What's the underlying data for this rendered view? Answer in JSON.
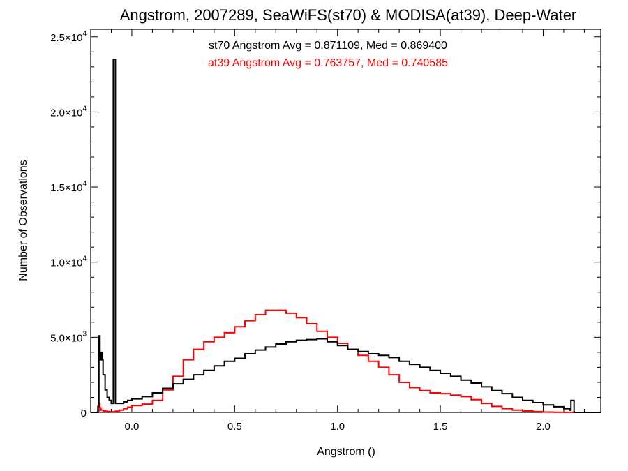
{
  "chart_data": {
    "type": "step-histogram",
    "title": "Angstrom, 2007289, SeaWiFS(st70) & MODISA(at39), Deep-Water",
    "xlabel": "Angstrom ()",
    "ylabel": "Number of Observations",
    "xlim": [
      -0.2,
      2.28
    ],
    "ylim": [
      0,
      25500
    ],
    "x_ticks": [
      {
        "v": 0.0,
        "label": "0.0"
      },
      {
        "v": 0.5,
        "label": "0.5"
      },
      {
        "v": 1.0,
        "label": "1.0"
      },
      {
        "v": 1.5,
        "label": "1.5"
      },
      {
        "v": 2.0,
        "label": "2.0"
      }
    ],
    "y_ticks": [
      {
        "v": 0,
        "mant": "0",
        "exp": ""
      },
      {
        "v": 5000,
        "mant": "5.0×10",
        "exp": "3"
      },
      {
        "v": 10000,
        "mant": "1.0×10",
        "exp": "4"
      },
      {
        "v": 15000,
        "mant": "1.5×10",
        "exp": "4"
      },
      {
        "v": 20000,
        "mant": "2.0×10",
        "exp": "4"
      },
      {
        "v": 25000,
        "mant": "2.5×10",
        "exp": "4"
      }
    ],
    "annotations": [
      {
        "text": "st70 Angstrom Avg = 0.871109, Med = 0.869400",
        "color": "#000000"
      },
      {
        "text": "at39 Angstrom Avg = 0.763757, Med = 0.740585",
        "color": "#ff0000"
      }
    ],
    "series": [
      {
        "color": "#000000",
        "points": [
          [
            -0.2,
            0
          ],
          [
            -0.19,
            0
          ],
          [
            -0.18,
            0
          ],
          [
            -0.17,
            0
          ],
          [
            -0.165,
            400
          ],
          [
            -0.16,
            5100
          ],
          [
            -0.155,
            3500
          ],
          [
            -0.15,
            4000
          ],
          [
            -0.145,
            3500
          ],
          [
            -0.14,
            2500
          ],
          [
            -0.13,
            1500
          ],
          [
            -0.12,
            1000
          ],
          [
            -0.11,
            800
          ],
          [
            -0.1,
            600
          ],
          [
            -0.09,
            23500
          ],
          [
            -0.08,
            600
          ],
          [
            -0.06,
            600
          ],
          [
            -0.04,
            700
          ],
          [
            -0.02,
            800
          ],
          [
            0.0,
            900
          ],
          [
            0.05,
            1050
          ],
          [
            0.1,
            1300
          ],
          [
            0.15,
            1600
          ],
          [
            0.2,
            1900
          ],
          [
            0.25,
            2200
          ],
          [
            0.3,
            2500
          ],
          [
            0.35,
            2800
          ],
          [
            0.4,
            3100
          ],
          [
            0.45,
            3400
          ],
          [
            0.5,
            3600
          ],
          [
            0.55,
            3900
          ],
          [
            0.6,
            4150
          ],
          [
            0.65,
            4350
          ],
          [
            0.7,
            4550
          ],
          [
            0.75,
            4700
          ],
          [
            0.8,
            4800
          ],
          [
            0.85,
            4850
          ],
          [
            0.9,
            4900
          ],
          [
            0.95,
            4700
          ],
          [
            1.0,
            4450
          ],
          [
            1.05,
            4200
          ],
          [
            1.1,
            4050
          ],
          [
            1.15,
            3900
          ],
          [
            1.2,
            3800
          ],
          [
            1.25,
            3650
          ],
          [
            1.3,
            3400
          ],
          [
            1.35,
            3200
          ],
          [
            1.4,
            3000
          ],
          [
            1.45,
            2800
          ],
          [
            1.5,
            2600
          ],
          [
            1.55,
            2400
          ],
          [
            1.6,
            2150
          ],
          [
            1.65,
            1950
          ],
          [
            1.7,
            1700
          ],
          [
            1.75,
            1450
          ],
          [
            1.8,
            1250
          ],
          [
            1.85,
            1000
          ],
          [
            1.9,
            800
          ],
          [
            1.95,
            650
          ],
          [
            2.0,
            500
          ],
          [
            2.05,
            380
          ],
          [
            2.1,
            250
          ],
          [
            2.13,
            150
          ],
          [
            2.135,
            800
          ],
          [
            2.145,
            800
          ],
          [
            2.15,
            0
          ],
          [
            2.28,
            0
          ]
        ]
      },
      {
        "color": "#ff0000",
        "points": [
          [
            -0.2,
            0
          ],
          [
            -0.19,
            0
          ],
          [
            -0.18,
            0
          ],
          [
            -0.17,
            0
          ],
          [
            -0.165,
            100
          ],
          [
            -0.16,
            600
          ],
          [
            -0.155,
            300
          ],
          [
            -0.15,
            150
          ],
          [
            -0.14,
            100
          ],
          [
            -0.13,
            80
          ],
          [
            -0.12,
            60
          ],
          [
            -0.11,
            50
          ],
          [
            -0.1,
            40
          ],
          [
            -0.09,
            40
          ],
          [
            -0.08,
            80
          ],
          [
            -0.06,
            150
          ],
          [
            -0.04,
            250
          ],
          [
            -0.02,
            350
          ],
          [
            0.0,
            450
          ],
          [
            0.05,
            550
          ],
          [
            0.1,
            800
          ],
          [
            0.15,
            1500
          ],
          [
            0.2,
            2400
          ],
          [
            0.25,
            3500
          ],
          [
            0.3,
            4200
          ],
          [
            0.35,
            4700
          ],
          [
            0.4,
            5000
          ],
          [
            0.45,
            5300
          ],
          [
            0.5,
            5700
          ],
          [
            0.55,
            6100
          ],
          [
            0.6,
            6500
          ],
          [
            0.65,
            6800
          ],
          [
            0.7,
            6800
          ],
          [
            0.75,
            6600
          ],
          [
            0.8,
            6300
          ],
          [
            0.85,
            5900
          ],
          [
            0.9,
            5400
          ],
          [
            0.95,
            5000
          ],
          [
            1.0,
            4600
          ],
          [
            1.05,
            4200
          ],
          [
            1.1,
            3800
          ],
          [
            1.15,
            3400
          ],
          [
            1.2,
            3000
          ],
          [
            1.25,
            2500
          ],
          [
            1.3,
            2000
          ],
          [
            1.35,
            1650
          ],
          [
            1.4,
            1450
          ],
          [
            1.45,
            1300
          ],
          [
            1.5,
            1250
          ],
          [
            1.55,
            1150
          ],
          [
            1.6,
            1050
          ],
          [
            1.65,
            850
          ],
          [
            1.7,
            600
          ],
          [
            1.75,
            400
          ],
          [
            1.8,
            250
          ],
          [
            1.85,
            150
          ],
          [
            1.9,
            90
          ],
          [
            1.95,
            50
          ],
          [
            2.0,
            25
          ],
          [
            2.05,
            10
          ],
          [
            2.1,
            5
          ],
          [
            2.15,
            2
          ],
          [
            2.2,
            0
          ],
          [
            2.28,
            0
          ]
        ]
      }
    ]
  }
}
